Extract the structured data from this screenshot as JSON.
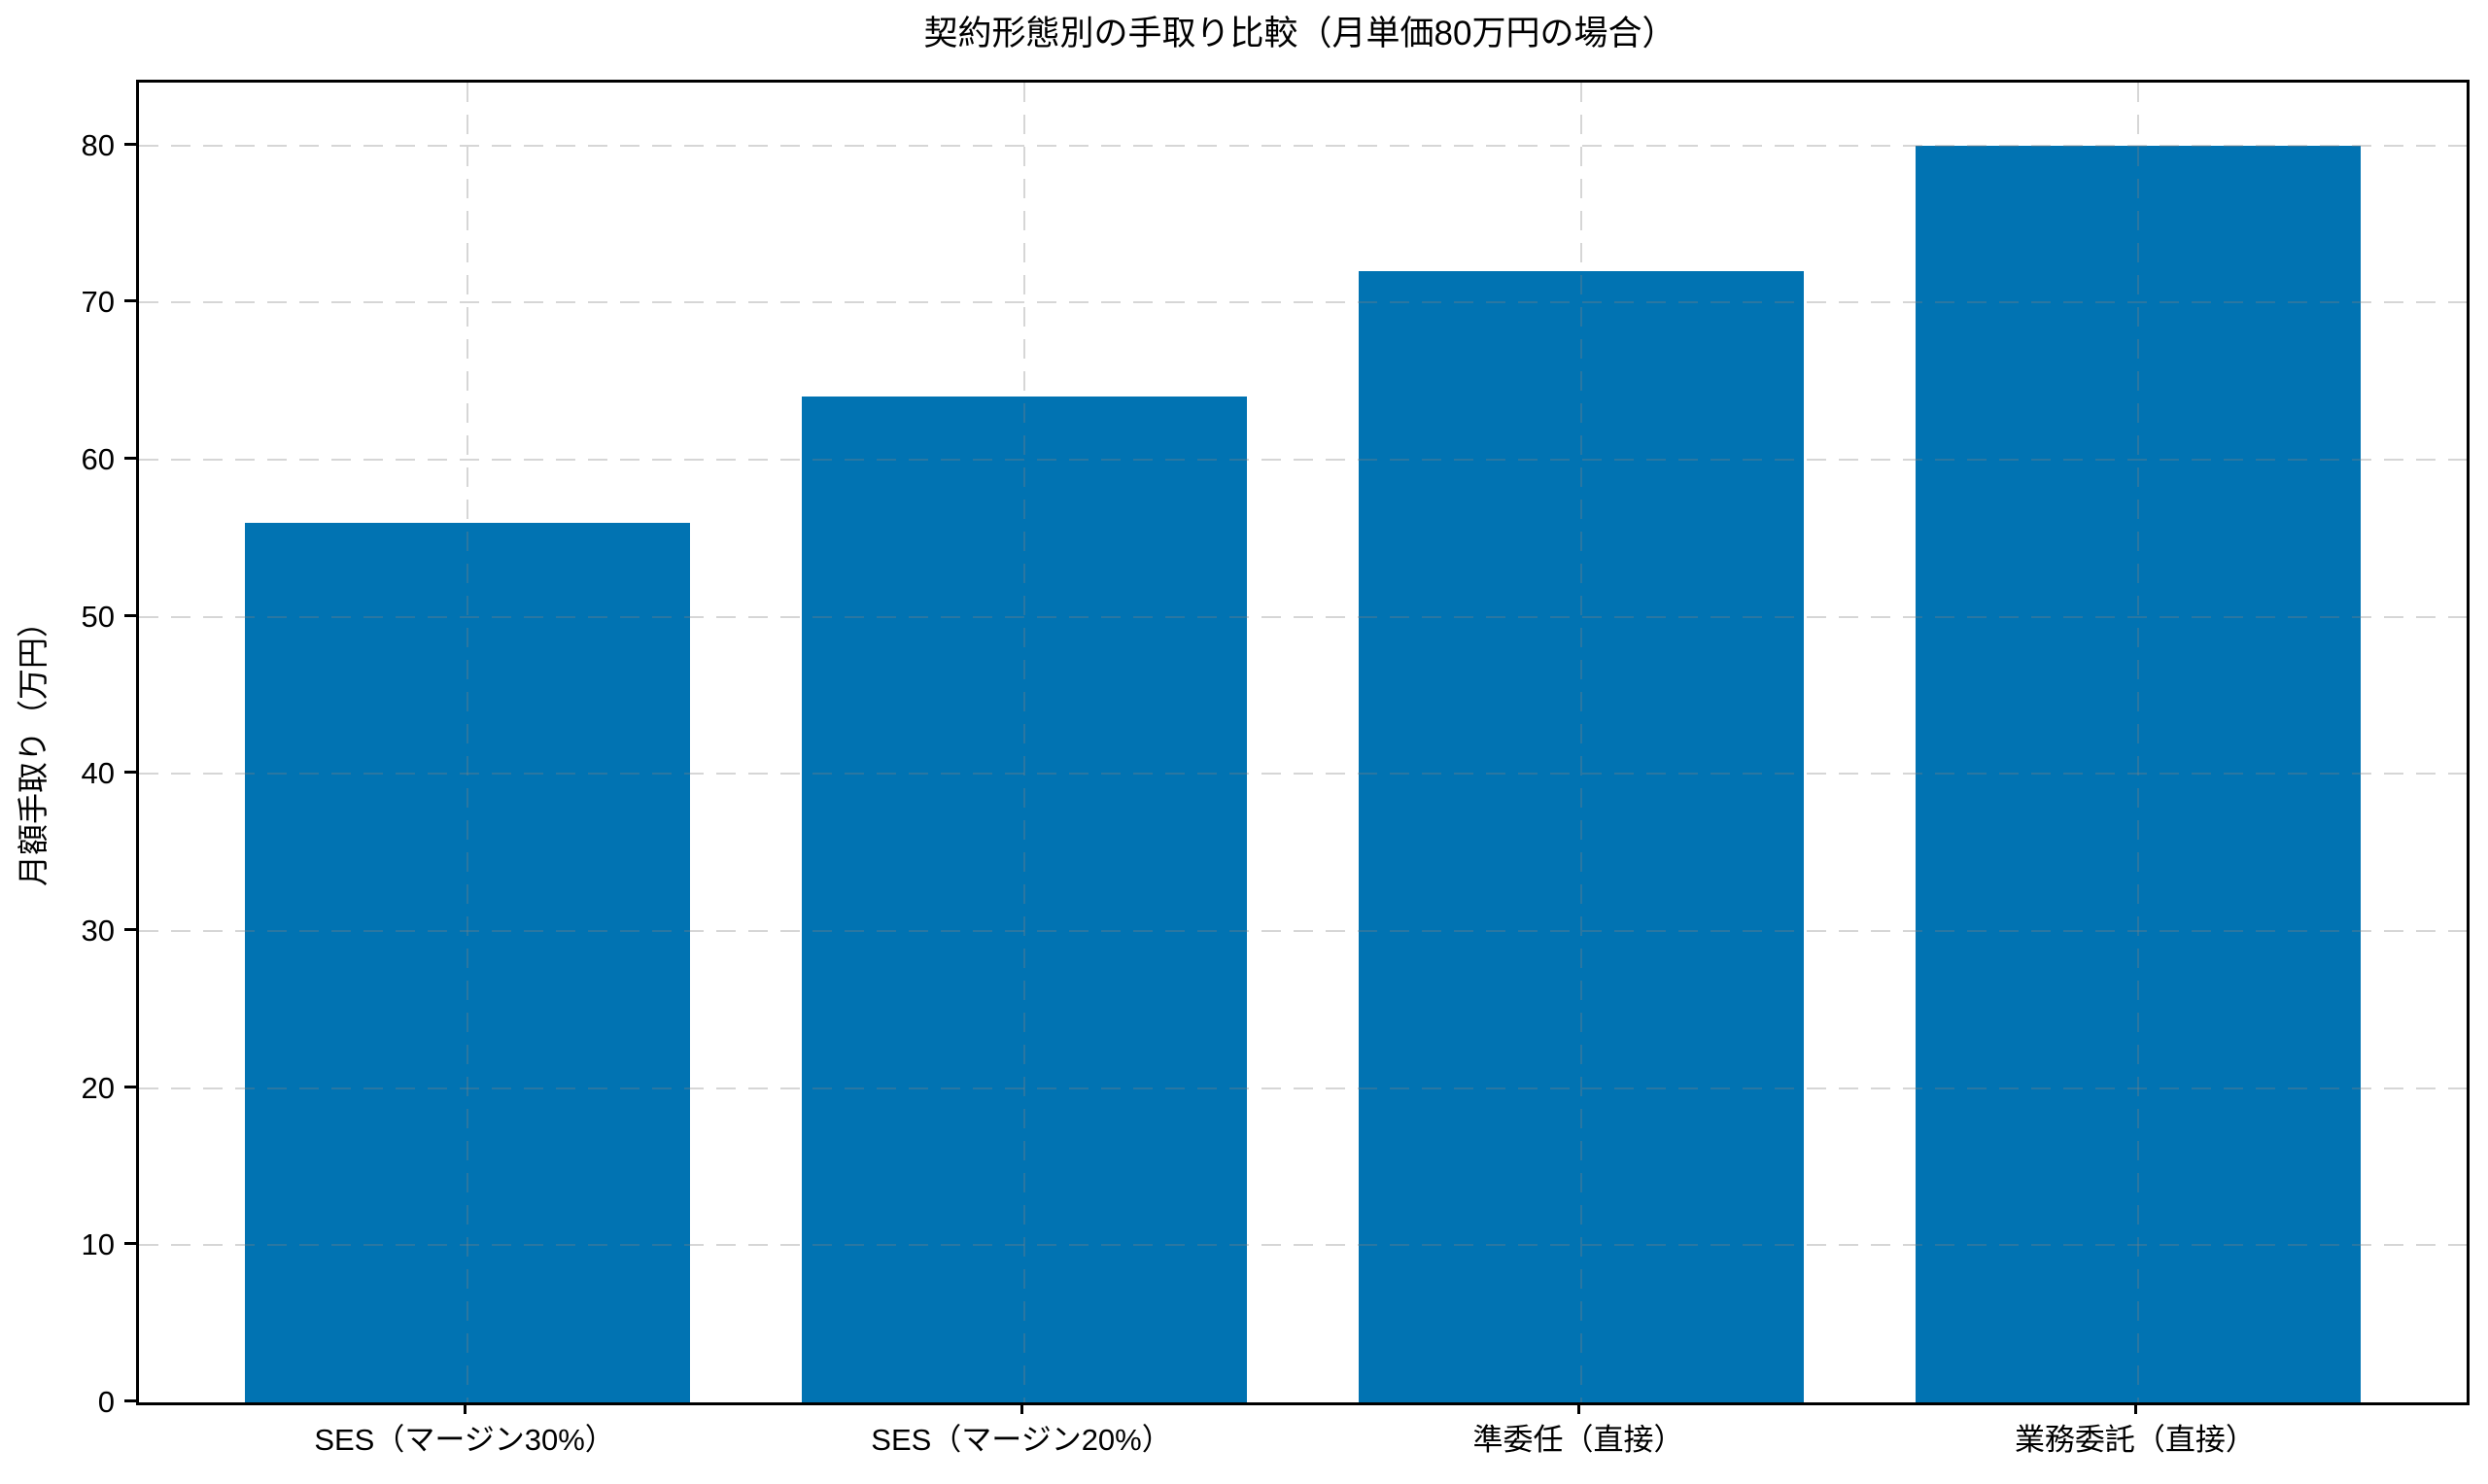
{
  "chart_data": {
    "type": "bar",
    "title": "契約形態別の手取り比較（月単価80万円の場合）",
    "ylabel": "月額手取り（万円）",
    "xlabel": "",
    "categories": [
      "SES（マージン30%）",
      "SES（マージン20%）",
      "準委任（直接）",
      "業務委託（直接）"
    ],
    "values": [
      56,
      64,
      72,
      80
    ],
    "yticks": [
      0,
      10,
      20,
      30,
      40,
      50,
      60,
      70,
      80
    ],
    "ylim": [
      0,
      84
    ],
    "xlim": [
      -0.59,
      3.59
    ],
    "bar_width_units": 0.8,
    "grid": "dashed, both axes, drawn over bars",
    "legend": "none",
    "bar_color": "#0173b2",
    "spine_color": "#000000",
    "text_color": "#000000"
  }
}
